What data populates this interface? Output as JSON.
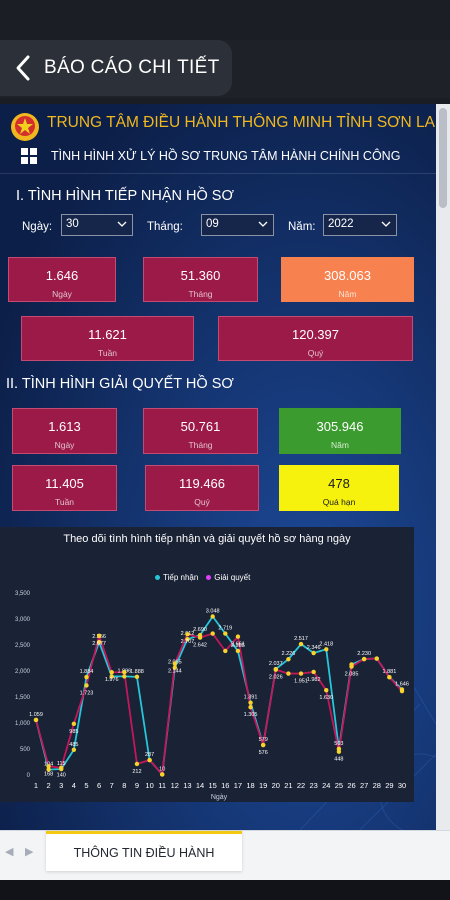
{
  "header": {
    "title": "BÁO CÁO CHI TIẾT"
  },
  "report": {
    "org_title": "TRUNG TÂM ĐIỀU HÀNH THÔNG MINH TỈNH SƠN LA",
    "subtitle": "TÌNH HÌNH XỬ LÝ HỒ SƠ TRUNG TÂM HÀNH CHÍNH CÔNG",
    "section1_title": "I. TÌNH HÌNH TIẾP NHẬN HỒ SƠ",
    "section2_title": "II. TÌNH HÌNH GIẢI QUYẾT HỒ SƠ",
    "filters": {
      "day_label": "Ngày:",
      "day_value": "30",
      "month_label": "Tháng:",
      "month_value": "09",
      "year_label": "Năm:",
      "year_value": "2022"
    },
    "received": {
      "day": {
        "value": "1.646",
        "label": "Ngày"
      },
      "month": {
        "value": "51.360",
        "label": "Tháng"
      },
      "year": {
        "value": "308.063",
        "label": "Năm"
      },
      "week": {
        "value": "11.621",
        "label": "Tuần"
      },
      "quarter": {
        "value": "120.397",
        "label": "Quý"
      }
    },
    "resolved": {
      "day": {
        "value": "1.613",
        "label": "Ngày"
      },
      "month": {
        "value": "50.761",
        "label": "Tháng"
      },
      "year": {
        "value": "305.946",
        "label": "Năm"
      },
      "week": {
        "value": "11.405",
        "label": "Tuần"
      },
      "quarter": {
        "value": "119.466",
        "label": "Quý"
      },
      "overdue": {
        "value": "478",
        "label": "Quá hạn"
      }
    }
  },
  "chart_data": {
    "type": "line",
    "title": "Theo dõi tình hình tiếp nhận và giải quyết hồ sơ hàng ngày",
    "xlabel": "Ngày",
    "ylabel": "",
    "x": [
      1,
      2,
      3,
      4,
      5,
      6,
      7,
      8,
      9,
      10,
      11,
      12,
      13,
      14,
      15,
      16,
      17,
      18,
      19,
      20,
      21,
      22,
      23,
      24,
      25,
      26,
      27,
      28,
      29,
      30
    ],
    "ylim": [
      0,
      3500
    ],
    "yticks": [
      "0",
      "500",
      "1,000",
      "1,500",
      "2,000",
      "2,500",
      "3,000",
      "3,500"
    ],
    "legend_position": "top",
    "series": [
      {
        "name": "Tiếp nhận",
        "color": "#26c6da",
        "values": [
          1059,
          104,
          115,
          485,
          1884,
          2556,
          1896,
          1896,
          1888,
          287,
          10,
          2065,
          2612,
          2690,
          3048,
          2719,
          2385,
          1391,
          579,
          2037,
          2226,
          2517,
          2346,
          2418,
          503,
          2126,
          2230,
          2240,
          1881,
          1646
        ],
        "labels": [
          "1.059",
          "104",
          "115",
          "485",
          "1.884",
          "2.556",
          "",
          "1.896",
          "1.888",
          "287",
          "10",
          "2.065",
          "2.612",
          "2.690",
          "3.048",
          "2.719",
          "2.385",
          "1.391",
          "579",
          "2.037",
          "2.226",
          "2.517",
          "2.346",
          "2.418",
          "503",
          "",
          "2.230",
          "",
          "1.881",
          "1.646"
        ]
      },
      {
        "name": "Giải quyết",
        "color": "#e040fb",
        "values": [
          1059,
          168,
          140,
          985,
          1723,
          2677,
          1976,
          1976,
          212,
          287,
          10,
          2144,
          2707,
          2642,
          2719,
          2385,
          2661,
          1305,
          576,
          2026,
          1951,
          1951,
          1982,
          1630,
          448,
          2085,
          2230,
          2240,
          1881,
          1613
        ],
        "labels": [
          "",
          "168",
          "140",
          "985",
          "1.723",
          "2.677",
          "1.976",
          "",
          "212",
          "",
          "",
          "2.144",
          "2.707",
          "2.642",
          "",
          "",
          "2.661",
          "1.305",
          "576",
          "2.026",
          "",
          "1.951",
          "1.982",
          "1.630",
          "448",
          "2.085",
          "",
          "",
          "",
          ""
        ]
      }
    ]
  }
}
